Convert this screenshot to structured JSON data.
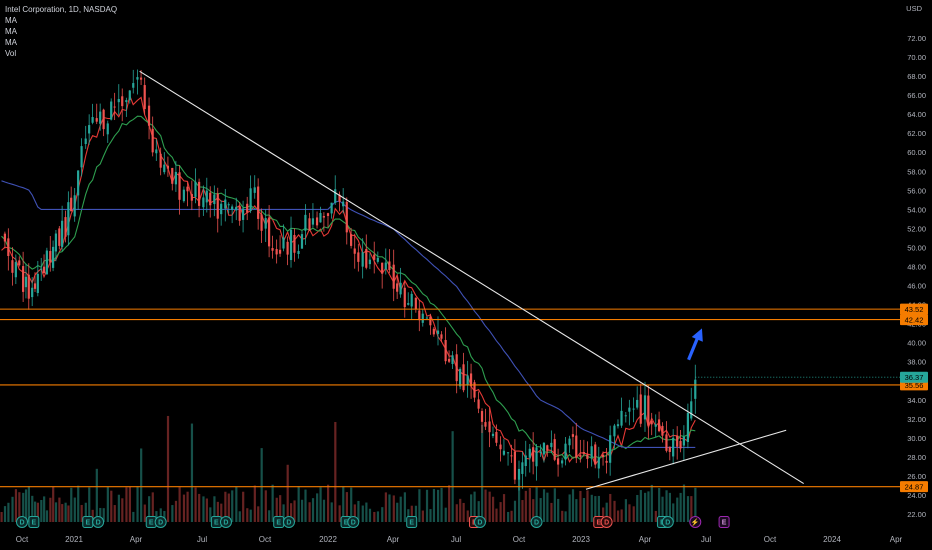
{
  "legend": {
    "symbol": "Intel Corporation, 1D, NASDAQ",
    "indicators": [
      "MA",
      "MA",
      "MA",
      "Vol"
    ]
  },
  "currency": "USD",
  "colors": {
    "background": "#000000",
    "up": "#26a69a",
    "down": "#ef5350",
    "ma_fast": "#e53935",
    "ma_mid": "#2e9e4f",
    "ma_slow": "#3f51b5",
    "level": "#f57c00",
    "trendline": "#e8e8e8",
    "arrow": "#2962ff",
    "price_tag": "#26a69a"
  },
  "chart_data": {
    "type": "candlestick",
    "y_axis": {
      "range": [
        21,
        73
      ],
      "ticks": [
        "22.00",
        "24.00",
        "26.00",
        "28.00",
        "30.00",
        "32.00",
        "34.00",
        "36.00",
        "38.00",
        "40.00",
        "42.00",
        "44.00",
        "46.00",
        "48.00",
        "50.00",
        "52.00",
        "54.00",
        "56.00",
        "58.00",
        "60.00",
        "62.00",
        "64.00",
        "66.00",
        "68.00",
        "70.00",
        "72.00"
      ]
    },
    "x_axis": {
      "labels": [
        "Oct",
        "2021",
        "Apr",
        "Jul",
        "Oct",
        "2022",
        "Apr",
        "Jul",
        "Oct",
        "2023",
        "Apr",
        "Jul",
        "Oct",
        "2024",
        "Apr"
      ],
      "label_dates": [
        "2020-10-01",
        "2021-01-01",
        "2021-04-01",
        "2021-07-01",
        "2021-10-01",
        "2022-01-01",
        "2022-04-01",
        "2022-07-01",
        "2022-10-01",
        "2023-01-01",
        "2023-04-01",
        "2023-07-01",
        "2023-10-01",
        "2024-01-01",
        "2024-04-01"
      ]
    },
    "price_series": {
      "name": "Intel Corporation",
      "interval": "1D",
      "dates": [
        "2020-09-01",
        "2020-10-15",
        "2020-11-01",
        "2020-12-01",
        "2021-01-01",
        "2021-01-20",
        "2021-02-15",
        "2021-03-15",
        "2021-04-06",
        "2021-04-25",
        "2021-05-15",
        "2021-06-15",
        "2021-07-15",
        "2021-08-15",
        "2021-09-15",
        "2021-10-15",
        "2021-11-01",
        "2021-12-01",
        "2022-01-01",
        "2022-01-15",
        "2022-02-01",
        "2022-03-01",
        "2022-04-01",
        "2022-05-01",
        "2022-06-01",
        "2022-07-01",
        "2022-08-01",
        "2022-09-01",
        "2022-10-01",
        "2022-11-01",
        "2022-12-01",
        "2023-01-01",
        "2023-02-01",
        "2023-03-01",
        "2023-04-01",
        "2023-05-01",
        "2023-06-01",
        "2023-06-15"
      ],
      "close": [
        51,
        45,
        48,
        50,
        55,
        62,
        64,
        66,
        68,
        61,
        57,
        56,
        54,
        54,
        55,
        50,
        50,
        52,
        53,
        56,
        51,
        48,
        47,
        44,
        41,
        37,
        34,
        30,
        26,
        29,
        28,
        29,
        27,
        32,
        33,
        30,
        30,
        36.4
      ]
    },
    "moving_averages": [
      {
        "legend": "MA",
        "color": "#e53935",
        "values": [
          50,
          47,
          47,
          49,
          54,
          60,
          63,
          65,
          66,
          62,
          58,
          56,
          55,
          54,
          54,
          52,
          51,
          51,
          52,
          54,
          52,
          49,
          47,
          45,
          42,
          38,
          35,
          31,
          28,
          28,
          28,
          28,
          28,
          30,
          32,
          31,
          30,
          32
        ]
      },
      {
        "legend": "MA",
        "color": "#2e9e4f",
        "values": [
          51,
          48,
          48,
          49,
          51,
          56,
          60,
          63,
          64,
          63,
          60,
          57,
          56,
          55,
          54,
          53,
          52,
          52,
          52,
          53,
          52,
          50,
          48,
          46,
          44,
          41,
          38,
          34,
          31,
          29,
          28,
          28,
          28,
          29,
          30,
          30,
          30,
          31
        ]
      },
      {
        "legend": "MA",
        "color": "#3f51b5",
        "values": [
          57,
          56,
          54,
          54,
          54,
          54,
          54,
          54,
          54,
          54,
          54,
          54,
          54,
          54,
          54,
          54,
          54,
          54,
          54,
          55,
          54,
          53,
          52,
          50,
          48,
          46,
          43,
          40,
          37,
          34,
          33,
          31,
          30,
          29,
          29,
          29,
          29,
          29
        ]
      }
    ],
    "horizontal_levels": [
      {
        "value": 43.52,
        "label": "43.52"
      },
      {
        "value": 42.42,
        "label": "42.42"
      },
      {
        "value": 35.56,
        "label": "35.56"
      },
      {
        "value": 24.87,
        "label": "24.87"
      }
    ],
    "last_price": {
      "value": 36.37,
      "label": "36.37"
    },
    "trendlines": [
      {
        "from": {
          "date": "2021-04-06",
          "value": 68.5
        },
        "to": {
          "date": "2023-11-20",
          "value": 25.2
        }
      },
      {
        "from": {
          "date": "2023-01-08",
          "value": 24.6
        },
        "to": {
          "date": "2023-10-25",
          "value": 30.8
        }
      }
    ],
    "annotation_arrow": {
      "from": {
        "date": "2023-06-05",
        "value": 38.2
      },
      "to": {
        "date": "2023-06-25",
        "value": 41.5
      }
    },
    "events": [
      {
        "date": "2020-10-01",
        "label": "D",
        "kind": "dividend"
      },
      {
        "date": "2020-10-22",
        "label": "E",
        "kind": "earnings"
      },
      {
        "date": "2021-01-21",
        "label": "E",
        "kind": "earnings"
      },
      {
        "date": "2021-02-05",
        "label": "D",
        "kind": "dividend"
      },
      {
        "date": "2021-04-22",
        "label": "E",
        "kind": "earnings"
      },
      {
        "date": "2021-05-05",
        "label": "D",
        "kind": "dividend"
      },
      {
        "date": "2021-07-22",
        "label": "E",
        "kind": "earnings"
      },
      {
        "date": "2021-08-05",
        "label": "D",
        "kind": "dividend"
      },
      {
        "date": "2021-10-21",
        "label": "E",
        "kind": "earnings"
      },
      {
        "date": "2021-11-05",
        "label": "D",
        "kind": "dividend"
      },
      {
        "date": "2022-01-26",
        "label": "E",
        "kind": "earnings"
      },
      {
        "date": "2022-02-05",
        "label": "D",
        "kind": "dividend"
      },
      {
        "date": "2022-04-28",
        "label": "E",
        "kind": "earnings"
      },
      {
        "date": "2022-07-28",
        "label": "E",
        "kind": "earnings-negative"
      },
      {
        "date": "2022-08-05",
        "label": "D",
        "kind": "dividend"
      },
      {
        "date": "2022-10-27",
        "label": "D",
        "kind": "dividend"
      },
      {
        "date": "2023-01-26",
        "label": "E",
        "kind": "earnings-negative"
      },
      {
        "date": "2023-02-06",
        "label": "D",
        "kind": "dividend-negative"
      },
      {
        "date": "2023-04-27",
        "label": "E",
        "kind": "earnings"
      },
      {
        "date": "2023-05-05",
        "label": "D",
        "kind": "dividend"
      },
      {
        "date": "2023-06-15",
        "label": "⚡",
        "kind": "split"
      },
      {
        "date": "2023-07-27",
        "label": "E",
        "kind": "earnings-upcoming"
      }
    ]
  }
}
